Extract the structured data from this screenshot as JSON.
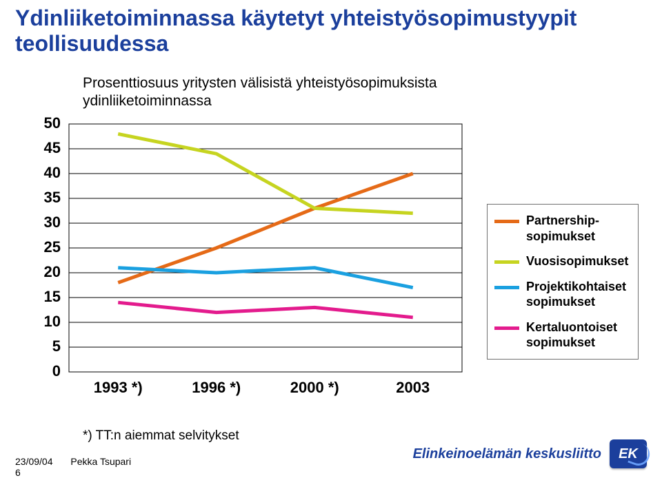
{
  "title_line1": "Ydinliiketoiminnassa käytetyt yhteistyösopimustyypit",
  "title_line2": "teollisuudessa",
  "title_fontsize": 32,
  "title_color": "#1b3f9c",
  "subtitle_line1": "Prosenttiosuus yritysten välisistä yhteistyösopimuksista",
  "subtitle_line2": "ydinliiketoiminnassa",
  "subtitle_fontsize": 21,
  "chart": {
    "type": "line",
    "background_color": "#ffffff",
    "grid_color": "#000000",
    "grid_linewidth": 1,
    "plot_border": true,
    "categories": [
      "1993 *)",
      "1996 *)",
      "2000 *)",
      "2003"
    ],
    "x_label_fontsize": 22,
    "y_label_fontsize": 22,
    "ylim": [
      0,
      50
    ],
    "ytick_step": 5,
    "line_width": 5,
    "marker": "none",
    "series": [
      {
        "key": "partnership",
        "label": "Partnership-\nsopimukset",
        "color": "#e56a17",
        "values": [
          18,
          25,
          33,
          40
        ]
      },
      {
        "key": "vuosi",
        "label": "Vuosisopimukset",
        "color": "#c6d420",
        "values": [
          48,
          44,
          33,
          32
        ]
      },
      {
        "key": "projekti",
        "label": "Projektikohtaiset sopimukset",
        "color": "#1aa0e0",
        "values": [
          21,
          20,
          21,
          17
        ]
      },
      {
        "key": "kerta",
        "label": "Kertaluontoiset sopimukset",
        "color": "#e31b8d",
        "values": [
          14,
          12,
          13,
          11
        ]
      }
    ],
    "legend": {
      "fontsize": 18,
      "border_color": "#707070",
      "position": "right"
    }
  },
  "footnote": "*) TT:n aiemmat selvitykset",
  "footnote_fontsize": 19,
  "footer": {
    "date": "23/09/04",
    "author": "Pekka Tsupari",
    "page": "6",
    "brand": "Elinkeinoelämän keskusliitto",
    "logo_text": "EK",
    "logo_bg": "#1b3f9c",
    "brand_color": "#1b3f9c"
  }
}
